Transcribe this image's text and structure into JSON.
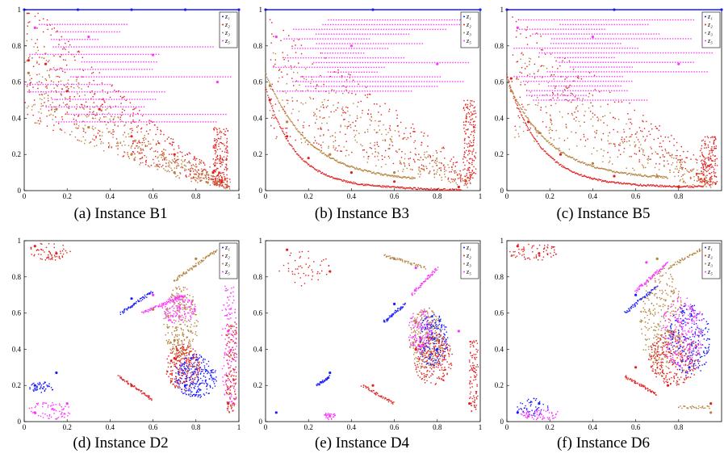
{
  "colors": {
    "z1": "#1a1aff",
    "z2": "#e0201e",
    "z3": "#b5813c",
    "z5": "#ff33ff"
  },
  "legend_labels": [
    "z₁",
    "z₂",
    "z₃",
    "z₅"
  ],
  "xticks": [
    "0",
    "0.2",
    "0.4",
    "0.6",
    "0.8",
    "1"
  ],
  "yticks": [
    "0",
    "0.2",
    "0.4",
    "0.6",
    "0.8",
    "1"
  ],
  "captions": [
    "(a) Instance B1",
    "(b) Instance B3",
    "(c) Instance B5",
    "(d) Instance D2",
    "(e) Instance D4",
    "(f) Instance D6"
  ],
  "chart_data": [
    {
      "type": "scatter",
      "title": "",
      "xlim": [
        0,
        1
      ],
      "ylim": [
        0,
        1
      ],
      "legend": "top-right",
      "series": [
        {
          "name": "z₁",
          "summary": "horizontal band near y=1 across full x range",
          "points": [
            [
              0,
              1
            ],
            [
              0.25,
              1
            ],
            [
              0.5,
              1
            ],
            [
              0.75,
              1
            ],
            [
              1,
              1
            ]
          ]
        },
        {
          "name": "z₂",
          "summary": "scattered cloud decreasing from y~0.75 at x=0 to y~0.05 at x~0.95",
          "points": [
            [
              0.02,
              0.72
            ],
            [
              0.1,
              0.7
            ],
            [
              0.2,
              0.55
            ],
            [
              0.35,
              0.45
            ],
            [
              0.5,
              0.3
            ],
            [
              0.7,
              0.2
            ],
            [
              0.88,
              0.1
            ],
            [
              0.92,
              0.05
            ]
          ]
        },
        {
          "name": "z₃",
          "summary": "scattered cloud along convex front",
          "points": [
            [
              0.02,
              0.65
            ],
            [
              0.15,
              0.45
            ],
            [
              0.3,
              0.35
            ],
            [
              0.5,
              0.2
            ],
            [
              0.7,
              0.1
            ],
            [
              0.9,
              0.05
            ]
          ]
        },
        {
          "name": "z₅",
          "summary": "horizontal dotted lines at high y values",
          "points": [
            [
              0.05,
              0.9
            ],
            [
              0.3,
              0.85
            ],
            [
              0.6,
              0.75
            ],
            [
              0.9,
              0.6
            ]
          ]
        }
      ]
    },
    {
      "type": "scatter",
      "title": "",
      "xlim": [
        0,
        1
      ],
      "ylim": [
        0,
        1
      ],
      "legend": "top-right",
      "series": [
        {
          "name": "z₁",
          "summary": "horizontal band near y=1",
          "points": [
            [
              0,
              1
            ],
            [
              0.5,
              1
            ],
            [
              1,
              1
            ]
          ]
        },
        {
          "name": "z₂",
          "summary": "dense convex front from (0,0.5) to (0.95,0.02) plus scattered cloud",
          "points": [
            [
              0.02,
              0.5
            ],
            [
              0.1,
              0.3
            ],
            [
              0.2,
              0.18
            ],
            [
              0.4,
              0.1
            ],
            [
              0.6,
              0.05
            ],
            [
              0.9,
              0.02
            ]
          ]
        },
        {
          "name": "z₃",
          "summary": "convex front slightly above z₂ front",
          "points": [
            [
              0.02,
              0.58
            ],
            [
              0.1,
              0.38
            ],
            [
              0.3,
              0.2
            ],
            [
              0.6,
              0.1
            ]
          ]
        },
        {
          "name": "z₅",
          "summary": "horizontal dotted lines at high y",
          "points": [
            [
              0.05,
              0.85
            ],
            [
              0.4,
              0.8
            ],
            [
              0.8,
              0.7
            ]
          ]
        }
      ]
    },
    {
      "type": "scatter",
      "title": "",
      "xlim": [
        0,
        1
      ],
      "ylim": [
        0,
        1
      ],
      "legend": "top-right",
      "series": [
        {
          "name": "z₁",
          "summary": "horizontal band near y=1",
          "points": [
            [
              0,
              1
            ],
            [
              0.5,
              1
            ],
            [
              1,
              1
            ]
          ]
        },
        {
          "name": "z₂",
          "summary": "dense convex front from (0,0.6) to (0.95,0.02) plus scattered cloud",
          "points": [
            [
              0.02,
              0.62
            ],
            [
              0.1,
              0.38
            ],
            [
              0.25,
              0.2
            ],
            [
              0.5,
              0.08
            ],
            [
              0.8,
              0.02
            ]
          ]
        },
        {
          "name": "z₃",
          "summary": "convex front slightly above z₂ front",
          "points": [
            [
              0.02,
              0.55
            ],
            [
              0.15,
              0.32
            ],
            [
              0.4,
              0.15
            ],
            [
              0.7,
              0.08
            ]
          ]
        },
        {
          "name": "z₅",
          "summary": "horizontal dotted lines at high y",
          "points": [
            [
              0.05,
              0.9
            ],
            [
              0.4,
              0.85
            ],
            [
              0.8,
              0.7
            ]
          ]
        }
      ]
    },
    {
      "type": "scatter",
      "title": "",
      "xlim": [
        0,
        1
      ],
      "ylim": [
        0,
        1
      ],
      "legend": "top-right",
      "series": [
        {
          "name": "z₁",
          "summary": "clusters near bottom-left and right side",
          "points": [
            [
              0.05,
              0.2
            ],
            [
              0.15,
              0.27
            ],
            [
              0.5,
              0.68
            ],
            [
              0.75,
              0.2
            ]
          ]
        },
        {
          "name": "z₂",
          "summary": "clusters top-left and curved segments on the right",
          "points": [
            [
              0.05,
              0.97
            ],
            [
              0.15,
              0.93
            ],
            [
              0.5,
              0.2
            ],
            [
              0.7,
              0.35
            ],
            [
              0.95,
              0.1
            ]
          ]
        },
        {
          "name": "z₃",
          "summary": "curved segments on right half",
          "points": [
            [
              0.6,
              0.62
            ],
            [
              0.7,
              0.45
            ],
            [
              0.8,
              0.9
            ]
          ]
        },
        {
          "name": "z₅",
          "summary": "segments near bottom-left and right side",
          "points": [
            [
              0.05,
              0.05
            ],
            [
              0.2,
              0.1
            ],
            [
              0.6,
              0.7
            ],
            [
              0.95,
              0.5
            ]
          ]
        }
      ]
    },
    {
      "type": "scatter",
      "title": "",
      "xlim": [
        0,
        1
      ],
      "ylim": [
        0,
        1
      ],
      "legend": "top-right",
      "series": [
        {
          "name": "z₁",
          "summary": "segments at left-bottom and middle-right",
          "points": [
            [
              0.05,
              0.05
            ],
            [
              0.3,
              0.27
            ],
            [
              0.6,
              0.65
            ],
            [
              0.8,
              0.4
            ]
          ]
        },
        {
          "name": "z₂",
          "summary": "scattered upper-left and curved lobes right",
          "points": [
            [
              0.1,
              0.95
            ],
            [
              0.3,
              0.83
            ],
            [
              0.5,
              0.2
            ],
            [
              0.7,
              0.4
            ],
            [
              0.95,
              0.1
            ]
          ]
        },
        {
          "name": "z₃",
          "summary": "curved lobes on right half",
          "points": [
            [
              0.6,
              0.9
            ],
            [
              0.7,
              0.55
            ],
            [
              0.8,
              0.45
            ]
          ]
        },
        {
          "name": "z₅",
          "summary": "segments on right half and bottom",
          "points": [
            [
              0.3,
              0.03
            ],
            [
              0.7,
              0.85
            ],
            [
              0.9,
              0.5
            ]
          ]
        }
      ]
    },
    {
      "type": "scatter",
      "title": "",
      "xlim": [
        0,
        1
      ],
      "ylim": [
        0,
        1
      ],
      "legend": "top-right",
      "series": [
        {
          "name": "z₁",
          "summary": "segments at bottom-left and right side",
          "points": [
            [
              0.05,
              0.05
            ],
            [
              0.15,
              0.1
            ],
            [
              0.6,
              0.7
            ],
            [
              0.85,
              0.3
            ]
          ]
        },
        {
          "name": "z₂",
          "summary": "clusters top-left and curved lobes right",
          "points": [
            [
              0.05,
              0.97
            ],
            [
              0.15,
              0.93
            ],
            [
              0.6,
              0.3
            ],
            [
              0.75,
              0.2
            ],
            [
              0.95,
              0.1
            ]
          ]
        },
        {
          "name": "z₃",
          "summary": "curved lobes on right half",
          "points": [
            [
              0.7,
              0.9
            ],
            [
              0.75,
              0.5
            ],
            [
              0.95,
              0.05
            ]
          ]
        },
        {
          "name": "z₅",
          "summary": "segments upper-right and bottom-left",
          "points": [
            [
              0.1,
              0.03
            ],
            [
              0.65,
              0.88
            ],
            [
              0.85,
              0.4
            ]
          ]
        }
      ]
    }
  ]
}
